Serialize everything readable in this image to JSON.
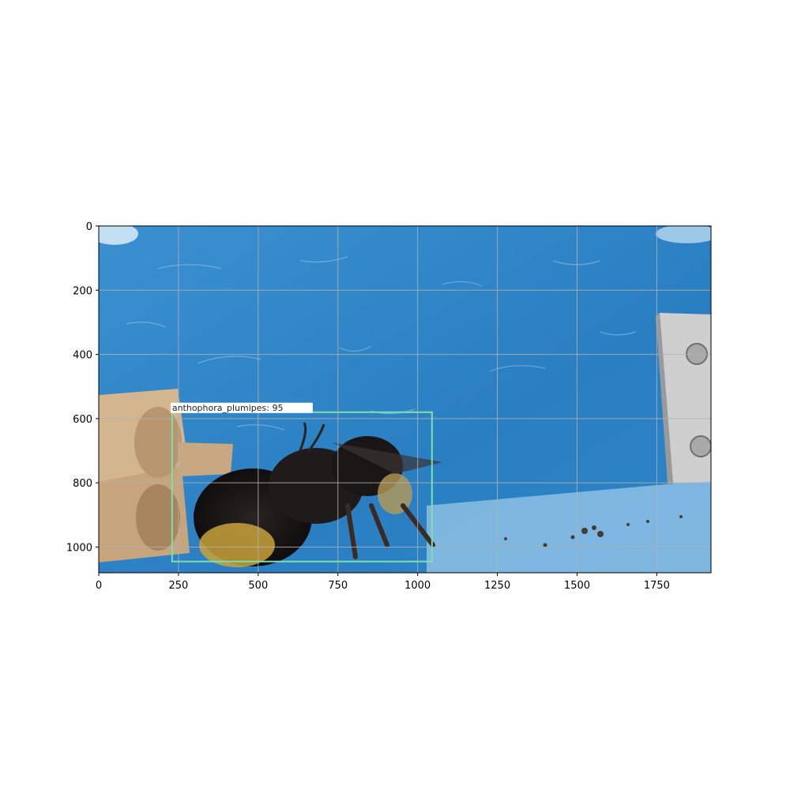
{
  "image": {
    "subject": "bumblebee on blue surface",
    "colors": {
      "background_blue": "#2f86c8",
      "background_blue_dark": "#1f6fb0",
      "grid": "#b0b0b0",
      "bbox": "#7ee0a8",
      "wood": "#c9ab86",
      "bee_dark": "#1e1a1a",
      "bee_fur_yellow": "#c9a23a",
      "metal": "#c8c8c8"
    }
  },
  "axes": {
    "x_ticks": [
      "0",
      "250",
      "500",
      "750",
      "1000",
      "1250",
      "1500",
      "1750"
    ],
    "x_tick_values": [
      0,
      250,
      500,
      750,
      1000,
      1250,
      1500,
      1750
    ],
    "y_ticks": [
      "0",
      "200",
      "400",
      "600",
      "800",
      "1000"
    ],
    "y_tick_values": [
      0,
      200,
      400,
      600,
      800,
      1000
    ],
    "xlim": [
      0,
      1920
    ],
    "ylim": [
      1080,
      0
    ],
    "grid": true
  },
  "detections": [
    {
      "label": "anthophora_plumipes: 95",
      "class": "anthophora_plumipes",
      "score": 95,
      "box": {
        "x1": 230,
        "y1": 580,
        "x2": 1045,
        "y2": 1045
      }
    }
  ]
}
